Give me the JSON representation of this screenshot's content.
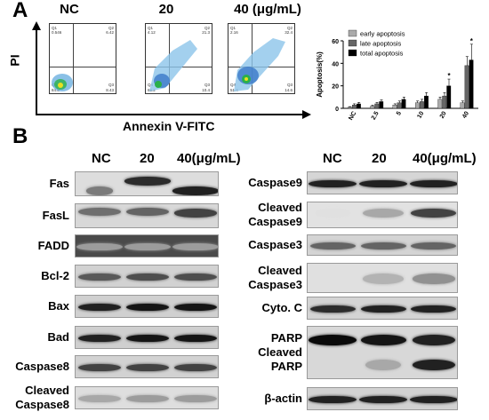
{
  "panel_a": {
    "letter": "A",
    "y_axis_title": "PI",
    "x_axis_title": "Annexin V-FITC",
    "flow_plots": [
      {
        "label": "NC",
        "q1": "0.546",
        "q2": "6.42",
        "q3": "84.8",
        "q4": "8.43"
      },
      {
        "label": "20",
        "q1": "4.12",
        "q2": "21.3",
        "q3": "65.2",
        "q4": "10.4"
      },
      {
        "label": "40 (μg/mL)",
        "q1": "2.16",
        "q2": "32.4",
        "q3": "51.4",
        "q4": "14.6"
      }
    ]
  },
  "chart_data": {
    "type": "bar",
    "ylabel": "Apoptosis(%)",
    "xlabel": "",
    "ylim": [
      0,
      60
    ],
    "yticks": [
      0,
      20,
      40,
      60
    ],
    "categories": [
      "NC",
      "2.5",
      "5",
      "10",
      "20",
      "40"
    ],
    "legend_position": "top-right",
    "series": [
      {
        "name": "early apoptosis",
        "color": "#aaaaaa",
        "values": [
          1,
          2,
          3,
          5,
          8,
          5
        ],
        "errors": [
          0.5,
          0.8,
          1,
          1.5,
          2,
          1.5
        ]
      },
      {
        "name": "late apoptosis",
        "color": "#666666",
        "values": [
          3,
          4,
          5,
          6,
          11,
          38
        ],
        "errors": [
          1,
          1.2,
          1.5,
          2,
          3,
          8
        ]
      },
      {
        "name": "total apoptosis",
        "color": "#000000",
        "values": [
          4,
          6,
          8,
          11,
          20,
          43
        ],
        "errors": [
          1.2,
          1.5,
          2,
          3,
          6,
          14
        ]
      }
    ],
    "annotations": [
      {
        "category": "20",
        "text": "*"
      },
      {
        "category": "40",
        "text": "*"
      }
    ]
  },
  "panel_b": {
    "letter": "B",
    "lanes": [
      "NC",
      "20",
      "40(μg/mL)"
    ],
    "left_blots": [
      {
        "label": "Fas",
        "bg": "#dddddd",
        "bands": [
          [
            0.55,
            0.75,
            0.5
          ],
          [
            0.95,
            0.35,
            0.85
          ],
          [
            0.95,
            0.75,
            0.9
          ]
        ]
      },
      {
        "label": "FasL",
        "bg": "#d8d8d8",
        "bands": [
          [
            0.9,
            0.3,
            0.55
          ],
          [
            0.9,
            0.3,
            0.6
          ],
          [
            0.9,
            0.35,
            0.75
          ]
        ]
      },
      {
        "label": "FADD",
        "bg": "#4a4a4a",
        "bands": [
          [
            0.95,
            0.5,
            0.35
          ],
          [
            0.95,
            0.5,
            0.35
          ],
          [
            0.95,
            0.5,
            0.35
          ]
        ]
      },
      {
        "label": "Bcl-2",
        "bg": "#d2d2d2",
        "bands": [
          [
            0.9,
            0.5,
            0.65
          ],
          [
            0.9,
            0.5,
            0.7
          ],
          [
            0.9,
            0.5,
            0.7
          ]
        ]
      },
      {
        "label": "Bax",
        "bg": "#d0d0d0",
        "bands": [
          [
            0.9,
            0.5,
            0.9
          ],
          [
            0.9,
            0.5,
            0.95
          ],
          [
            0.9,
            0.5,
            0.95
          ]
        ]
      },
      {
        "label": "Bad",
        "bg": "#cfcfcf",
        "bands": [
          [
            0.9,
            0.5,
            0.9
          ],
          [
            0.9,
            0.5,
            0.95
          ],
          [
            0.9,
            0.5,
            0.95
          ]
        ]
      },
      {
        "label": "Caspase8",
        "bg": "#d2d2d2",
        "bands": [
          [
            0.9,
            0.5,
            0.75
          ],
          [
            0.9,
            0.5,
            0.75
          ],
          [
            0.9,
            0.5,
            0.75
          ]
        ]
      },
      {
        "label": "Cleaved\nCaspase8",
        "bg": "#dedede",
        "bands": [
          [
            0.9,
            0.5,
            0.3
          ],
          [
            0.9,
            0.5,
            0.35
          ],
          [
            0.9,
            0.5,
            0.35
          ]
        ]
      }
    ],
    "right_blots": [
      {
        "label": "Caspase9",
        "bg": "#d6d6d6",
        "bands": [
          [
            0.95,
            0.5,
            0.9
          ],
          [
            0.95,
            0.5,
            0.9
          ],
          [
            0.95,
            0.5,
            0.9
          ]
        ]
      },
      {
        "label": "Cleaved\nCaspase9",
        "bg": "#e2e2e2",
        "bands": [
          [
            0.7,
            0.4,
            0.05
          ],
          [
            0.8,
            0.4,
            0.3
          ],
          [
            0.9,
            0.4,
            0.75
          ]
        ]
      },
      {
        "label": "Caspase3",
        "bg": "#d4d4d4",
        "bands": [
          [
            0.9,
            0.5,
            0.6
          ],
          [
            0.9,
            0.5,
            0.6
          ],
          [
            0.9,
            0.5,
            0.6
          ]
        ]
      },
      {
        "label": "Cleaved\nCaspase3",
        "bg": "#e0e0e0",
        "bands": [
          [
            0.7,
            0.5,
            0.05
          ],
          [
            0.8,
            0.5,
            0.25
          ],
          [
            0.85,
            0.5,
            0.4
          ]
        ]
      },
      {
        "label": "Cyto. C",
        "bg": "#d4d4d4",
        "bands": [
          [
            0.9,
            0.5,
            0.85
          ],
          [
            0.9,
            0.5,
            0.9
          ],
          [
            0.9,
            0.5,
            0.9
          ]
        ]
      },
      {
        "label": "PARP\nCleaved\nPARP",
        "bg": "#d8d8d8",
        "bands": [
          [
            0.95,
            0.25,
            1.0
          ],
          [
            0.9,
            0.25,
            0.95
          ],
          [
            0.85,
            0.25,
            0.9
          ],
          [
            0.01,
            0.72,
            0.0
          ],
          [
            0.7,
            0.72,
            0.3
          ],
          [
            0.85,
            0.72,
            0.9
          ]
        ]
      },
      {
        "label": "β-actin",
        "bg": "#d2d2d2",
        "bands": [
          [
            0.95,
            0.5,
            0.9
          ],
          [
            0.95,
            0.5,
            0.9
          ],
          [
            0.95,
            0.5,
            0.9
          ]
        ]
      }
    ]
  }
}
